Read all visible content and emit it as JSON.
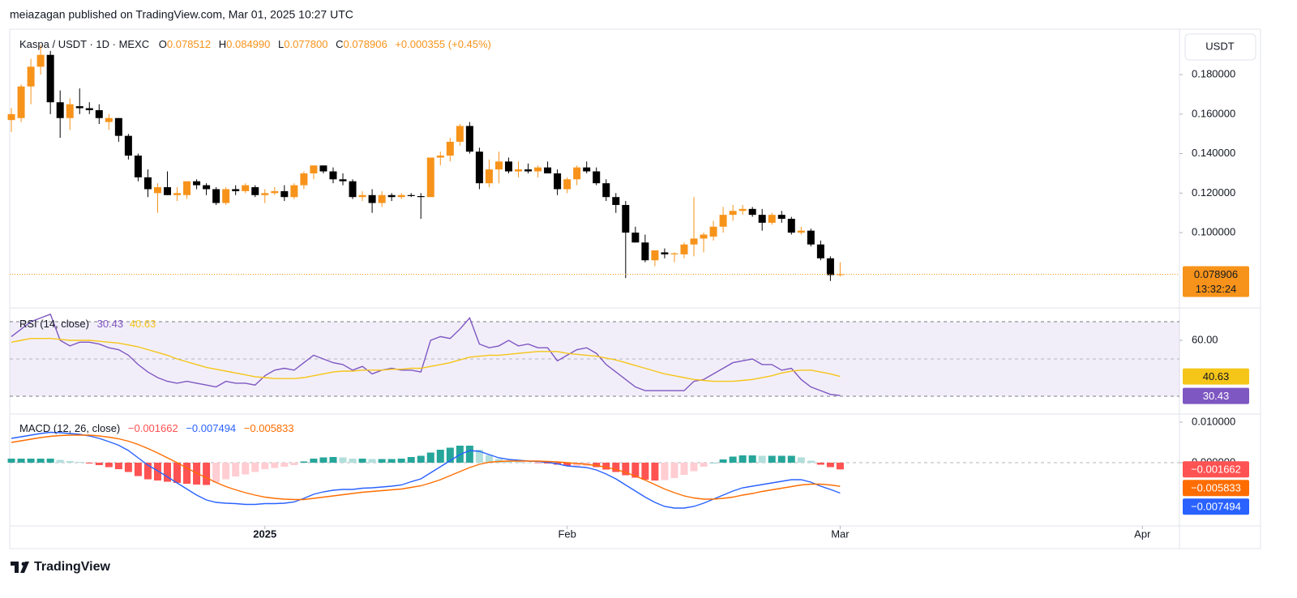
{
  "header": "meiazagan published on TradingView.com, Mar 01, 2025 10:27 UTC",
  "brand": "TradingView",
  "chart_data": [
    {
      "type": "candlestick",
      "title": "Kaspa / USDT · 1D · MEXC",
      "ohlc_keys": [
        "O",
        "H",
        "L",
        "C"
      ],
      "ohlc_labels": [
        "0.078512",
        "0.084990",
        "0.077800",
        "0.078906"
      ],
      "change": "+0.000355 (+0.45%)",
      "currency": "USDT",
      "countdown": "13:32:24",
      "up_color": "#f7931a",
      "down_color": "#000000",
      "grid": false,
      "open": [
        0.157,
        0.158,
        0.174,
        0.184,
        0.19,
        0.166,
        0.158,
        0.164,
        0.163,
        0.162,
        0.156,
        0.158,
        0.149,
        0.139,
        0.128,
        0.12,
        0.123,
        0.119,
        0.119,
        0.126,
        0.124,
        0.122,
        0.115,
        0.122,
        0.121,
        0.123,
        0.119,
        0.12,
        0.121,
        0.118,
        0.124,
        0.13,
        0.134,
        0.131,
        0.127,
        0.126,
        0.118,
        0.119,
        0.115,
        0.119,
        0.118,
        0.119,
        0.1185,
        0.118,
        0.138,
        0.139,
        0.146,
        0.154,
        0.141,
        0.125,
        0.132,
        0.136,
        0.131,
        0.132,
        0.131,
        0.133,
        0.13,
        0.122,
        0.127,
        0.133,
        0.131,
        0.125,
        0.118,
        0.114,
        0.1,
        0.095,
        0.086,
        0.09,
        0.089,
        0.089,
        0.094,
        0.097,
        0.098,
        0.103,
        0.109,
        0.111,
        0.112,
        0.109,
        0.105,
        0.109,
        0.107,
        0.1,
        0.101,
        0.094,
        0.087,
        0.078512
      ],
      "high": [
        0.163,
        0.175,
        0.188,
        0.195,
        0.192,
        0.172,
        0.168,
        0.173,
        0.166,
        0.165,
        0.16,
        0.158,
        0.15,
        0.14,
        0.132,
        0.125,
        0.131,
        0.123,
        0.126,
        0.127,
        0.125,
        0.123,
        0.123,
        0.124,
        0.125,
        0.124,
        0.122,
        0.123,
        0.124,
        0.125,
        0.131,
        0.134,
        0.134,
        0.133,
        0.13,
        0.127,
        0.121,
        0.122,
        0.121,
        0.12,
        0.12,
        0.12,
        0.12,
        0.138,
        0.141,
        0.148,
        0.155,
        0.156,
        0.143,
        0.137,
        0.141,
        0.138,
        0.136,
        0.135,
        0.134,
        0.136,
        0.132,
        0.128,
        0.134,
        0.136,
        0.133,
        0.127,
        0.12,
        0.116,
        0.103,
        0.099,
        0.091,
        0.092,
        0.09,
        0.095,
        0.118,
        0.1,
        0.106,
        0.113,
        0.114,
        0.114,
        0.113,
        0.112,
        0.11,
        0.111,
        0.108,
        0.103,
        0.102,
        0.096,
        0.088,
        0.08499
      ],
      "low": [
        0.151,
        0.156,
        0.165,
        0.18,
        0.16,
        0.148,
        0.152,
        0.16,
        0.16,
        0.155,
        0.152,
        0.146,
        0.137,
        0.126,
        0.118,
        0.11,
        0.119,
        0.116,
        0.117,
        0.122,
        0.119,
        0.114,
        0.114,
        0.119,
        0.12,
        0.118,
        0.115,
        0.119,
        0.116,
        0.117,
        0.122,
        0.127,
        0.13,
        0.125,
        0.124,
        0.117,
        0.116,
        0.11,
        0.113,
        0.116,
        0.117,
        0.118,
        0.107,
        0.118,
        0.134,
        0.136,
        0.144,
        0.14,
        0.122,
        0.123,
        0.125,
        0.13,
        0.128,
        0.13,
        0.128,
        0.13,
        0.119,
        0.12,
        0.124,
        0.13,
        0.124,
        0.116,
        0.11,
        0.077,
        0.095,
        0.085,
        0.083,
        0.087,
        0.085,
        0.087,
        0.088,
        0.09,
        0.096,
        0.1,
        0.106,
        0.109,
        0.108,
        0.101,
        0.104,
        0.105,
        0.099,
        0.099,
        0.093,
        0.086,
        0.0755,
        0.0778
      ],
      "close": [
        0.16,
        0.174,
        0.184,
        0.19,
        0.166,
        0.158,
        0.165,
        0.163,
        0.162,
        0.158,
        0.158,
        0.149,
        0.139,
        0.128,
        0.122,
        0.123,
        0.119,
        0.12,
        0.126,
        0.124,
        0.122,
        0.115,
        0.122,
        0.121,
        0.124,
        0.119,
        0.12,
        0.121,
        0.118,
        0.124,
        0.13,
        0.134,
        0.131,
        0.127,
        0.126,
        0.118,
        0.119,
        0.115,
        0.119,
        0.118,
        0.119,
        0.1185,
        0.118,
        0.138,
        0.139,
        0.146,
        0.154,
        0.141,
        0.125,
        0.132,
        0.136,
        0.131,
        0.132,
        0.131,
        0.133,
        0.13,
        0.122,
        0.127,
        0.133,
        0.131,
        0.125,
        0.118,
        0.114,
        0.1,
        0.095,
        0.086,
        0.091,
        0.089,
        0.0895,
        0.094,
        0.097,
        0.099,
        0.103,
        0.109,
        0.111,
        0.112,
        0.109,
        0.105,
        0.109,
        0.107,
        0.1,
        0.101,
        0.094,
        0.087,
        0.0785,
        0.078906
      ],
      "ylim": [
        0.0627,
        0.2026
      ],
      "yticks": [
        {
          "value": 0.1,
          "label": "0.100000"
        },
        {
          "value": 0.12,
          "label": "0.120000"
        },
        {
          "value": 0.14,
          "label": "0.140000"
        },
        {
          "value": 0.16,
          "label": "0.160000"
        },
        {
          "value": 0.18,
          "label": "0.180000"
        }
      ],
      "xlim": [
        -0.17,
        119.8
      ],
      "xticks": [
        {
          "value": 26,
          "label": "2025"
        },
        {
          "value": 57,
          "label": "Feb"
        },
        {
          "value": 85,
          "label": "Mar"
        },
        {
          "value": 116,
          "label": "Apr"
        }
      ]
    },
    {
      "type": "line",
      "title": "RSI (14, close)",
      "series": [
        {
          "color": "#7e57c2",
          "values": [
            62,
            66,
            70,
            72,
            74,
            60,
            57,
            59,
            59,
            58,
            56,
            55,
            52,
            47,
            43,
            40,
            38,
            37,
            38,
            37,
            36,
            35,
            38,
            37,
            37,
            36,
            41,
            44,
            45,
            44,
            48,
            52,
            50,
            48,
            47,
            44,
            46,
            42,
            44,
            45,
            44,
            44,
            43,
            60,
            62,
            61,
            66,
            72,
            58,
            56,
            57,
            60,
            57,
            58,
            56,
            56,
            49,
            52,
            55,
            56,
            53,
            47,
            43,
            39,
            35,
            33,
            33,
            33,
            33,
            33,
            38,
            39,
            42,
            45,
            48,
            49,
            50,
            47,
            47,
            44,
            45,
            39,
            35,
            33,
            31,
            30.43
          ]
        },
        {
          "color": "#f5c518",
          "values": [
            59,
            60,
            61,
            61,
            61,
            60.5,
            60,
            60,
            60,
            59.5,
            59,
            58.5,
            57.5,
            56.5,
            55,
            53.5,
            52,
            50,
            48.5,
            47,
            45.5,
            44.5,
            43.5,
            42.5,
            41.5,
            40.5,
            40,
            39.5,
            39.5,
            39.5,
            40,
            41,
            42,
            43,
            43.5,
            43.5,
            44,
            44,
            44,
            44.5,
            44.5,
            45,
            45,
            46,
            47,
            48,
            49.5,
            51,
            51.5,
            52,
            52,
            52.5,
            53,
            53.5,
            54,
            54,
            54,
            53,
            52.5,
            52,
            51.5,
            50.5,
            49.5,
            48,
            46.5,
            45,
            43.5,
            42,
            41,
            40,
            39,
            38.5,
            38,
            38,
            38,
            38.5,
            39,
            40,
            41,
            42.5,
            43.5,
            44,
            44,
            43,
            42,
            40.63
          ]
        }
      ],
      "bands": [
        70,
        50,
        30
      ],
      "band_color": "#7e57c2",
      "ylim": [
        20.9,
        76.5
      ],
      "yticks": [
        {
          "value": 60,
          "label": "60.00"
        }
      ]
    },
    {
      "type": "macd",
      "title": "MACD (12, 26, close)",
      "hist_colors": [
        "#26a69a",
        "#b2dfdb",
        "#ffcdd2",
        "#ff5252"
      ],
      "zero_line": true,
      "series": [
        {
          "type": "histogram",
          "color": "#ff5252",
          "last_label": "−0.001662",
          "values": [
            0.001,
            0.001,
            0.001,
            0.001,
            0.001,
            0.0007,
            0.0004,
            0.0002,
            -0.0002,
            -0.0006,
            -0.0011,
            -0.0016,
            -0.0023,
            -0.0033,
            -0.0041,
            -0.0044,
            -0.0047,
            -0.005,
            -0.0052,
            -0.0054,
            -0.0055,
            -0.0049,
            -0.0041,
            -0.0034,
            -0.0029,
            -0.0023,
            -0.0016,
            -0.0013,
            -0.001,
            -0.0006,
            0.0003,
            0.001,
            0.0013,
            0.0014,
            0.0013,
            0.001,
            0.001,
            0.0009,
            0.0009,
            0.0009,
            0.001,
            0.0014,
            0.0017,
            0.0025,
            0.0032,
            0.0037,
            0.0042,
            0.0042,
            0.0032,
            0.0019,
            0.0009,
            0.0004,
            0.0002,
            0.0,
            -0.0001,
            -0.0002,
            -0.0005,
            -0.0008,
            -0.0008,
            -0.0008,
            -0.0011,
            -0.0017,
            -0.0023,
            -0.0031,
            -0.0037,
            -0.0042,
            -0.0044,
            -0.0043,
            -0.0038,
            -0.003,
            -0.0021,
            -0.001,
            0.0,
            0.0008,
            0.0015,
            0.0018,
            0.0018,
            0.0017,
            0.0017,
            0.0017,
            0.0017,
            0.0013,
            0.0005,
            -0.0005,
            -0.0011,
            -0.001662
          ]
        },
        {
          "type": "line",
          "color": "#2962ff",
          "last_label": "−0.007494",
          "values": [
            0.006,
            0.0064,
            0.0068,
            0.0072,
            0.0075,
            0.0074,
            0.0072,
            0.007,
            0.0066,
            0.006,
            0.0052,
            0.0043,
            0.003,
            0.0012,
            -0.0006,
            -0.002,
            -0.0035,
            -0.005,
            -0.0065,
            -0.008,
            -0.0092,
            -0.0098,
            -0.01,
            -0.0101,
            -0.0103,
            -0.0103,
            -0.0101,
            -0.0101,
            -0.01,
            -0.0097,
            -0.0088,
            -0.0078,
            -0.0072,
            -0.0068,
            -0.0066,
            -0.0066,
            -0.0063,
            -0.0062,
            -0.006,
            -0.0058,
            -0.0055,
            -0.0047,
            -0.004,
            -0.0025,
            -0.001,
            0.0005,
            0.002,
            0.003,
            0.0028,
            0.002,
            0.0012,
            0.0008,
            0.0006,
            0.0004,
            0.0003,
            0.0001,
            -0.0003,
            -0.0008,
            -0.001,
            -0.0012,
            -0.0018,
            -0.0028,
            -0.004,
            -0.0055,
            -0.007,
            -0.0085,
            -0.0098,
            -0.0108,
            -0.0112,
            -0.0112,
            -0.0108,
            -0.01,
            -0.009,
            -0.008,
            -0.007,
            -0.0062,
            -0.0058,
            -0.0054,
            -0.005,
            -0.0046,
            -0.0042,
            -0.0042,
            -0.0048,
            -0.0058,
            -0.0066,
            -0.007494
          ]
        },
        {
          "type": "line",
          "color": "#ff6d00",
          "last_label": "−0.005833",
          "values": [
            0.005,
            0.0054,
            0.0058,
            0.0062,
            0.0065,
            0.0067,
            0.0068,
            0.0068,
            0.0068,
            0.0066,
            0.0063,
            0.0059,
            0.0053,
            0.0045,
            0.0035,
            0.0024,
            0.0012,
            0.0,
            -0.0013,
            -0.0026,
            -0.0037,
            -0.0049,
            -0.0059,
            -0.0067,
            -0.0074,
            -0.008,
            -0.0085,
            -0.0088,
            -0.009,
            -0.0091,
            -0.0091,
            -0.0088,
            -0.0085,
            -0.0082,
            -0.0079,
            -0.0076,
            -0.0073,
            -0.0071,
            -0.0069,
            -0.0067,
            -0.0065,
            -0.0061,
            -0.0057,
            -0.005,
            -0.0042,
            -0.0032,
            -0.0022,
            -0.0012,
            -0.0004,
            0.0001,
            0.0003,
            0.0004,
            0.0004,
            0.0004,
            0.0004,
            0.0003,
            0.0002,
            0.0,
            -0.0002,
            -0.0004,
            -0.0007,
            -0.0011,
            -0.0017,
            -0.0024,
            -0.0033,
            -0.0043,
            -0.0054,
            -0.0065,
            -0.0074,
            -0.0082,
            -0.0087,
            -0.009,
            -0.009,
            -0.0088,
            -0.0085,
            -0.008,
            -0.0076,
            -0.0071,
            -0.0067,
            -0.0063,
            -0.0059,
            -0.0055,
            -0.0053,
            -0.0053,
            -0.0055,
            -0.005833
          ]
        }
      ],
      "ylim": [
        -0.0154,
        0.0118
      ],
      "yticks": [
        {
          "value": 0.01,
          "label": "0.010000"
        },
        {
          "value": 0,
          "label": "0.000000"
        }
      ]
    }
  ]
}
